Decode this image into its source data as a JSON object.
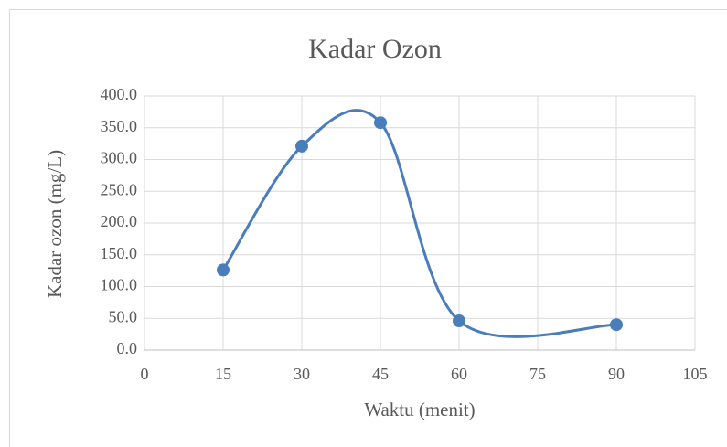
{
  "chart_data": {
    "type": "line",
    "smooth": true,
    "title": "Kadar Ozon",
    "x_label": "Waktu (menit)",
    "y_label": "Kadar ozon (mg/L)",
    "x": [
      15,
      30,
      45,
      60,
      90
    ],
    "series": [
      {
        "name": "Kadar ozon",
        "color": "#4a7ebb",
        "values": [
          126,
          321,
          358,
          46,
          40
        ]
      }
    ],
    "xlim": [
      0,
      105
    ],
    "xticks": [
      0,
      15,
      30,
      45,
      60,
      75,
      90,
      105
    ],
    "ylim": [
      0,
      400
    ],
    "yticks": [
      {
        "value": 0,
        "label": "0.0"
      },
      {
        "value": 50,
        "label": "50.0"
      },
      {
        "value": 100,
        "label": "100.0"
      },
      {
        "value": 150,
        "label": "150.0"
      },
      {
        "value": 200,
        "label": "200.0"
      },
      {
        "value": 250,
        "label": "250.0"
      },
      {
        "value": 300,
        "label": "300.0"
      },
      {
        "value": 350,
        "label": "350.0"
      },
      {
        "value": 400,
        "label": "400.0"
      }
    ],
    "grid": true
  }
}
